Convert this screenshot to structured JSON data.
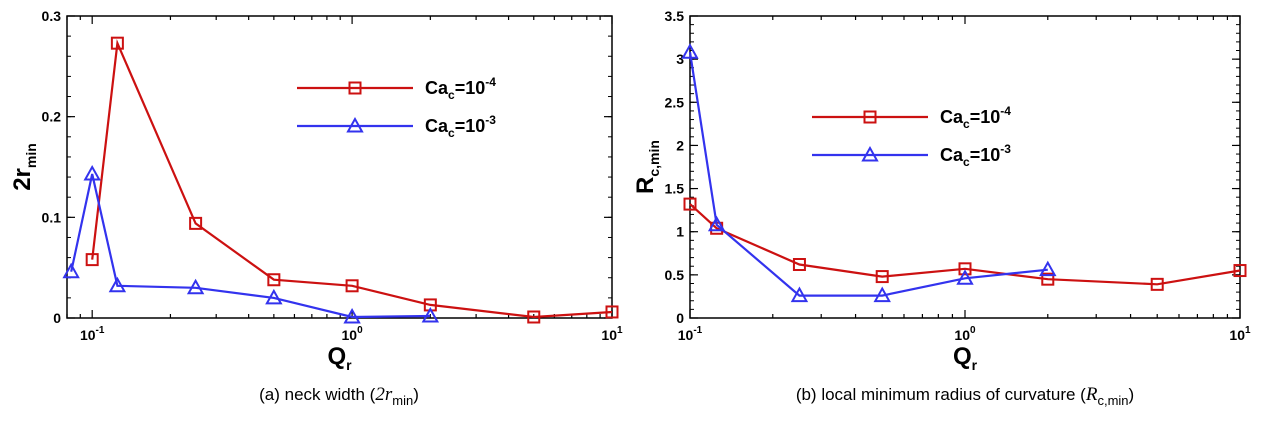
{
  "chart_data": [
    {
      "type": "line",
      "xscale": "log",
      "xlabel": "Q",
      "xlabel_sub": "r",
      "ylabel": "2r",
      "ylabel_sub": "min",
      "xlim": [
        0.08,
        10
      ],
      "ylim": [
        0,
        0.3
      ],
      "yticks": [
        "0",
        "0.1",
        "0.2",
        "0.3"
      ],
      "caption": {
        "prefix": "(a) neck width (",
        "sym": "2r",
        "sub": "min",
        "suffix": ")"
      },
      "legend": {
        "position": "top-right",
        "label_base": "Ca",
        "label_sub": "c",
        "label_mid": "=10"
      },
      "series": [
        {
          "name": "Ca_c=10^-4",
          "exp": "-4",
          "color": "#cc1111",
          "marker": "square",
          "x": [
            0.1,
            0.125,
            0.25,
            0.5,
            1,
            2,
            5,
            10
          ],
          "y": [
            0.058,
            0.273,
            0.094,
            0.038,
            0.032,
            0.013,
            0.001,
            0.006
          ]
        },
        {
          "name": "Ca_c=10^-3",
          "exp": "-3",
          "color": "#3333ee",
          "marker": "triangle",
          "x": [
            0.083,
            0.1,
            0.125,
            0.25,
            0.5,
            1,
            2
          ],
          "y": [
            0.046,
            0.143,
            0.032,
            0.03,
            0.02,
            0.001,
            0.002
          ]
        }
      ]
    },
    {
      "type": "line",
      "xscale": "log",
      "xlabel": "Q",
      "xlabel_sub": "r",
      "ylabel": "R",
      "ylabel_sub": "c,min",
      "xlim": [
        0.1,
        10
      ],
      "ylim": [
        0,
        3.5
      ],
      "yticks": [
        "0",
        "0.5",
        "1",
        "1.5",
        "2",
        "2.5",
        "3",
        "3.5"
      ],
      "caption": {
        "prefix": "(b) local minimum radius of curvature (",
        "sym": "R",
        "sub": "c,min",
        "suffix": ")"
      },
      "legend": {
        "position": "upper-middle",
        "label_base": "Ca",
        "label_sub": "c",
        "label_mid": "=10"
      },
      "series": [
        {
          "name": "Ca_c=10^-4",
          "exp": "-4",
          "color": "#cc1111",
          "marker": "square",
          "x": [
            0.1,
            0.125,
            0.25,
            0.5,
            1,
            2,
            5,
            10
          ],
          "y": [
            1.32,
            1.04,
            0.62,
            0.48,
            0.57,
            0.45,
            0.39,
            0.55
          ]
        },
        {
          "name": "Ca_c=10^-3",
          "exp": "-3",
          "color": "#3333ee",
          "marker": "triangle",
          "x": [
            0.1,
            0.125,
            0.25,
            0.5,
            1,
            2
          ],
          "y": [
            3.08,
            1.08,
            0.26,
            0.26,
            0.46,
            0.56
          ]
        }
      ]
    }
  ],
  "xtick_labels": [
    {
      "base": "10",
      "exp": "-1"
    },
    {
      "base": "10",
      "exp": "0"
    },
    {
      "base": "10",
      "exp": "1"
    }
  ]
}
